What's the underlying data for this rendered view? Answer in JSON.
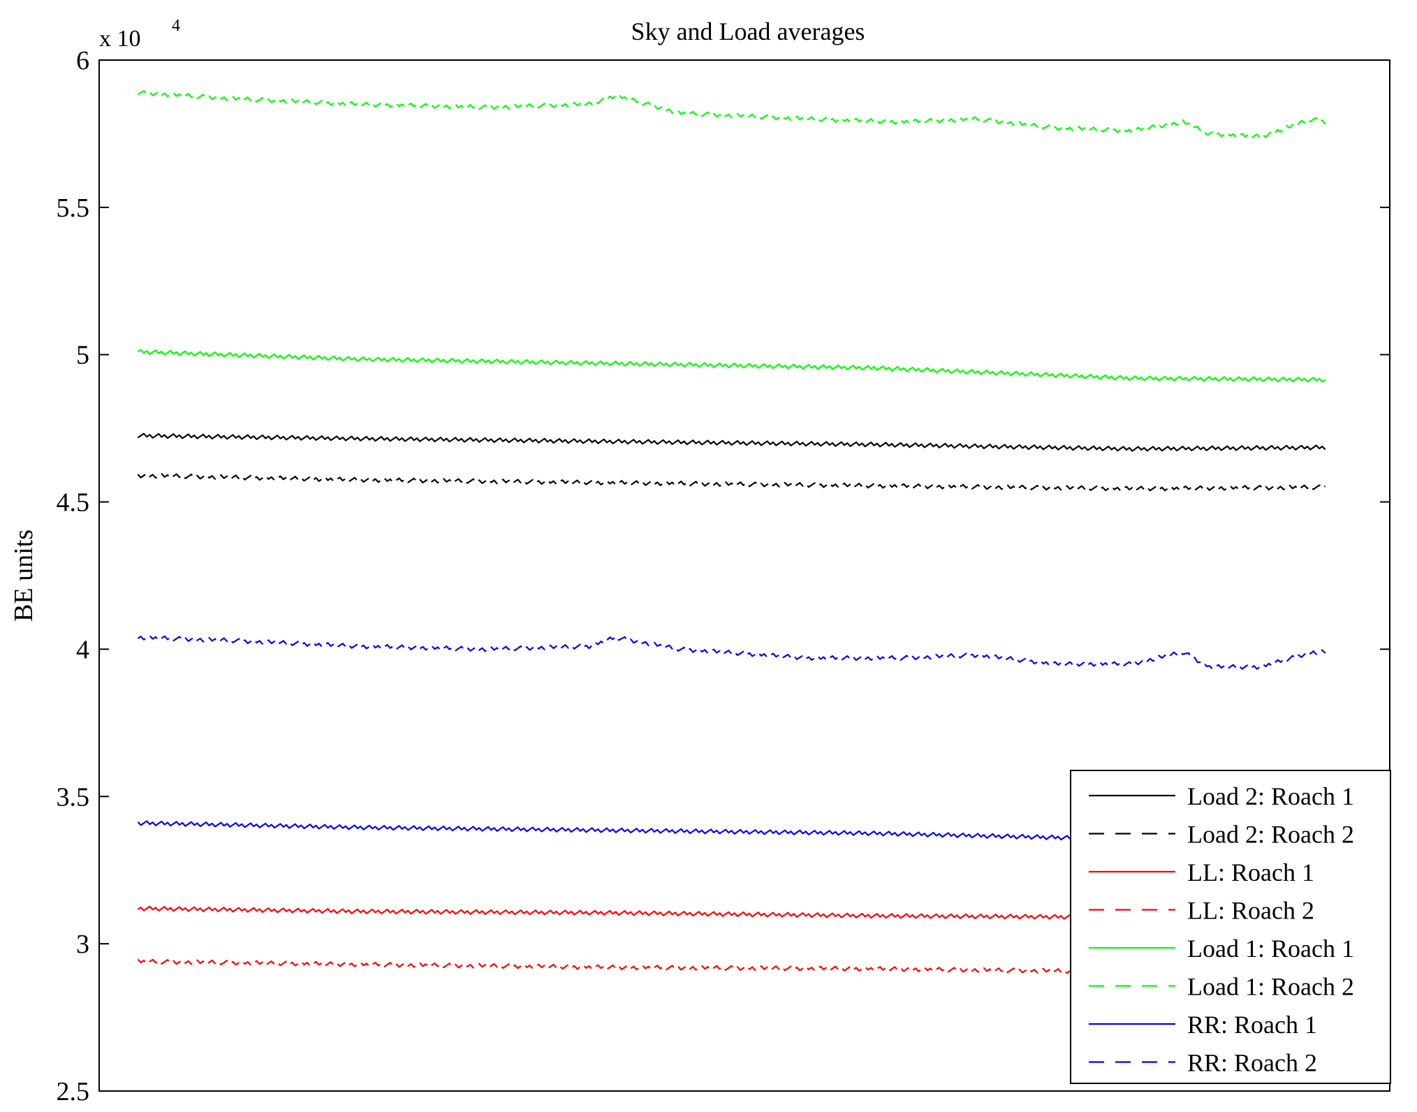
{
  "chart_data": {
    "type": "line",
    "title": "Sky and Load averages",
    "xlabel": "",
    "ylabel": "BE units",
    "ylim": [
      25000,
      60000
    ],
    "yticks": [
      25000,
      30000,
      35000,
      40000,
      45000,
      50000,
      55000,
      60000
    ],
    "ytick_labels": [
      "2.5",
      "3",
      "3.5",
      "4",
      "4.5",
      "5",
      "5.5",
      "6"
    ],
    "y_multiplier_base": "x 10",
    "y_multiplier_exp": "4",
    "xlim": [
      0,
      1
    ],
    "grid": false,
    "legend_position": "bottom-right",
    "series": [
      {
        "name": "Load 2: Roach 1",
        "color": "#000000",
        "style": "solid",
        "x": [
          0.03,
          0.2,
          0.4,
          0.6,
          0.8,
          0.95
        ],
        "y": [
          47250,
          47150,
          47050,
          46950,
          46800,
          46850
        ]
      },
      {
        "name": "Load 2: Roach 2",
        "color": "#000000",
        "style": "dashed",
        "x": [
          0.03,
          0.2,
          0.4,
          0.6,
          0.8,
          0.95
        ],
        "y": [
          45900,
          45750,
          45650,
          45550,
          45450,
          45500
        ]
      },
      {
        "name": "LL: Roach 1",
        "color": "#ff0000",
        "style": "solid",
        "x": [
          0.03,
          0.2,
          0.4,
          0.6,
          0.8,
          0.95
        ],
        "y": [
          31200,
          31100,
          31050,
          30950,
          30900,
          30900
        ]
      },
      {
        "name": "LL: Roach 2",
        "color": "#ff0000",
        "style": "dashed",
        "x": [
          0.03,
          0.2,
          0.4,
          0.6,
          0.8,
          0.95
        ],
        "y": [
          29400,
          29300,
          29200,
          29150,
          29050,
          29050
        ]
      },
      {
        "name": "Load 1: Roach 1",
        "color": "#00ff00",
        "style": "solid",
        "x": [
          0.03,
          0.2,
          0.4,
          0.6,
          0.8,
          0.95
        ],
        "y": [
          50100,
          49850,
          49700,
          49550,
          49200,
          49150
        ]
      },
      {
        "name": "Load 1: Roach 2",
        "color": "#00ff00",
        "style": "dashed",
        "x": [
          0.03,
          0.1,
          0.2,
          0.3,
          0.38,
          0.4,
          0.45,
          0.55,
          0.62,
          0.68,
          0.74,
          0.8,
          0.84,
          0.86,
          0.9,
          0.94,
          0.95
        ],
        "y": [
          58900,
          58700,
          58500,
          58400,
          58500,
          58800,
          58200,
          58000,
          57900,
          58000,
          57700,
          57600,
          57900,
          57500,
          57400,
          58000,
          57900
        ]
      },
      {
        "name": "RR: Roach 1",
        "color": "#0000ff",
        "style": "solid",
        "x": [
          0.03,
          0.2,
          0.4,
          0.6,
          0.8,
          0.95
        ],
        "y": [
          34100,
          33950,
          33850,
          33750,
          33550,
          33500
        ]
      },
      {
        "name": "RR: Roach 2",
        "color": "#0000ff",
        "style": "dashed",
        "x": [
          0.03,
          0.1,
          0.2,
          0.3,
          0.38,
          0.4,
          0.45,
          0.55,
          0.62,
          0.68,
          0.74,
          0.8,
          0.84,
          0.86,
          0.9,
          0.94,
          0.95
        ],
        "y": [
          40400,
          40300,
          40100,
          40000,
          40100,
          40400,
          40000,
          39700,
          39700,
          39800,
          39500,
          39500,
          39900,
          39400,
          39400,
          39900,
          39900
        ]
      }
    ]
  }
}
